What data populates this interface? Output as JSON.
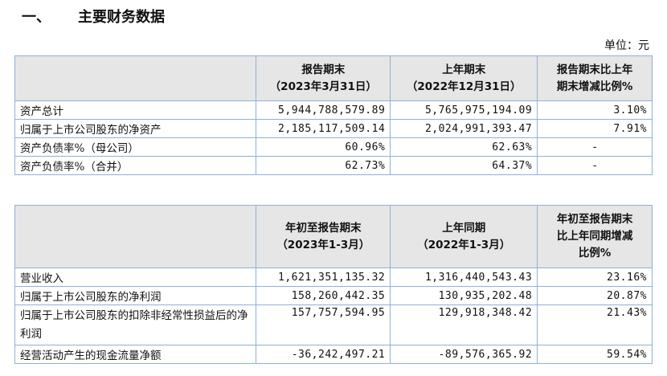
{
  "heading": {
    "number": "一、",
    "title": "主要财务数据"
  },
  "unit": "单位：元",
  "table1": {
    "headers": [
      "",
      "报告期末",
      "（2023年3月31日）",
      "上年期末",
      "（2022年12月31日）",
      "报告期末比上年",
      "期末增减比例%"
    ],
    "rows": [
      {
        "label": "资产总计",
        "current": "5,944,788,579.89",
        "prior": "5,765,975,194.09",
        "change": "3.10%"
      },
      {
        "label": "归属于上市公司股东的净资产",
        "current": "2,185,117,509.14",
        "prior": "2,024,991,393.47",
        "change": "7.91%"
      },
      {
        "label": "资产负债率%（母公司）",
        "current": "60.96%",
        "prior": "62.63%",
        "change": "-"
      },
      {
        "label": "资产负债率%（合并）",
        "current": "62.73%",
        "prior": "64.37%",
        "change": "-"
      }
    ]
  },
  "table2": {
    "headers": [
      "",
      "年初至报告期末",
      "（2023年1-3月）",
      "上年同期",
      "（2022年1-3月）",
      "年初至报告期末",
      "比上年同期增减",
      "比例%"
    ],
    "rows": [
      {
        "label": "营业收入",
        "current": "1,621,351,135.32",
        "prior": "1,316,440,543.43",
        "change": "23.16%"
      },
      {
        "label": "归属于上市公司股东的净利润",
        "current": "158,260,442.35",
        "prior": "130,935,202.48",
        "change": "20.87%"
      },
      {
        "label": "归属于上市公司股东的扣除非经常性损益后的净利润",
        "current": "157,757,594.95",
        "prior": "129,918,348.42",
        "change": "21.43%"
      },
      {
        "label": "经营活动产生的现金流量净额",
        "current": "-36,242,497.21",
        "prior": "-89,576,365.92",
        "change": "59.54%"
      }
    ]
  }
}
